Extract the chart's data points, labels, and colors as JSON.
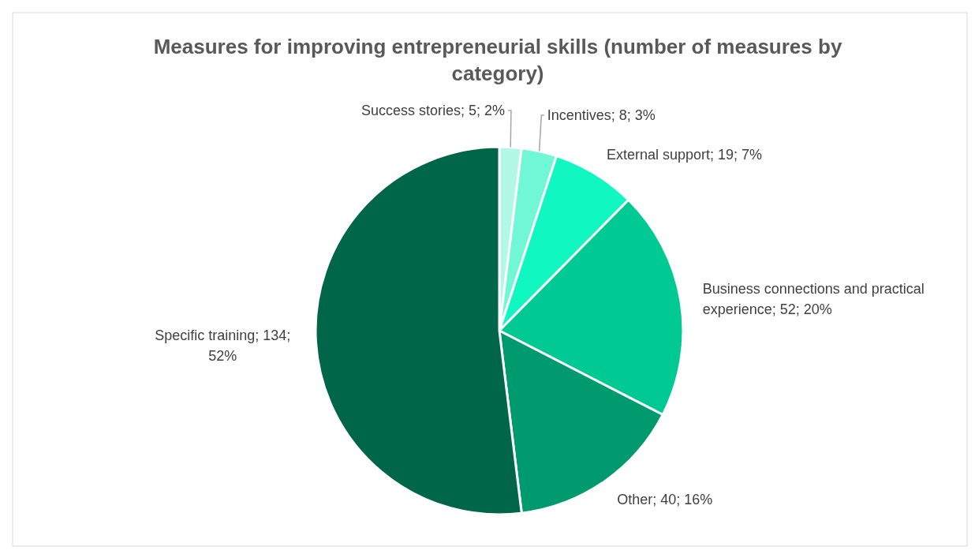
{
  "chart_data": {
    "type": "pie",
    "title": "Measures for improving entrepreneurial skills (number of measures by category)",
    "categories": [
      "Success stories",
      "Incentives",
      "External support",
      "Business connections and practical experience",
      "Other",
      "Specific training"
    ],
    "values": [
      5,
      8,
      19,
      52,
      40,
      134
    ],
    "value_labels": [
      "5; 2%",
      "8; 3%",
      "19; 7%",
      "52; 20%",
      "40; 16%",
      "134; 52%"
    ],
    "colors": [
      "#b3f7e7",
      "#6ff7d6",
      "#10f7c2",
      "#00c994",
      "#009a6f",
      "#00664a"
    ]
  }
}
